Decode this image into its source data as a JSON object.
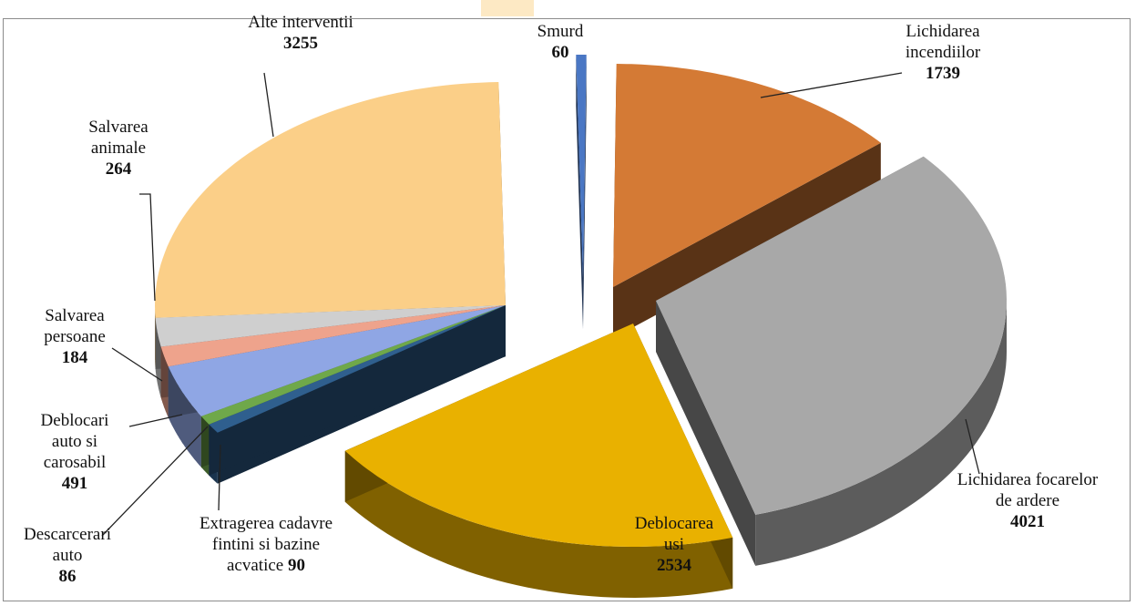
{
  "chart_data": {
    "type": "pie",
    "title": "",
    "legend": "none",
    "slices": [
      {
        "name": "Smurd",
        "label_lines": [
          "Smurd"
        ],
        "value": 60,
        "color": "#4a77c4"
      },
      {
        "name": "Lichidarea incendiilor",
        "label_lines": [
          "Lichidarea",
          "incendiilor"
        ],
        "value": 1739,
        "color": "#d47a35"
      },
      {
        "name": "Lichidarea focarelor de ardere",
        "label_lines": [
          "Lichidarea focarelor",
          "de ardere"
        ],
        "value": 4021,
        "color": "#a8a8a8"
      },
      {
        "name": "Deblocarea usi",
        "label_lines": [
          "Deblocarea",
          "usi"
        ],
        "value": 2534,
        "color": "#e9b100"
      },
      {
        "name": "Extragerea cadavre fintini si bazine acvatice",
        "label_lines": [
          "Extragerea cadavre",
          "fintini si bazine",
          "acvatice"
        ],
        "value": 90,
        "color": "#2f5f8e"
      },
      {
        "name": "Descarcerari auto",
        "label_lines": [
          "Descarcerari",
          "auto"
        ],
        "value": 86,
        "color": "#6fa84a"
      },
      {
        "name": "Deblocari auto si carosabil",
        "label_lines": [
          "Deblocari",
          "auto si",
          "carosabil"
        ],
        "value": 491,
        "color": "#8fa6e4"
      },
      {
        "name": "Salvarea persoane",
        "label_lines": [
          "Salvarea",
          "persoane"
        ],
        "value": 184,
        "color": "#eea38c"
      },
      {
        "name": "Salvarea animale",
        "label_lines": [
          "Salvarea",
          "animale"
        ],
        "value": 264,
        "color": "#cfcfcf"
      },
      {
        "name": "Alte interventii",
        "label_lines": [
          "Alte interventii"
        ],
        "value": 3255,
        "color": "#fbcf88"
      }
    ]
  }
}
